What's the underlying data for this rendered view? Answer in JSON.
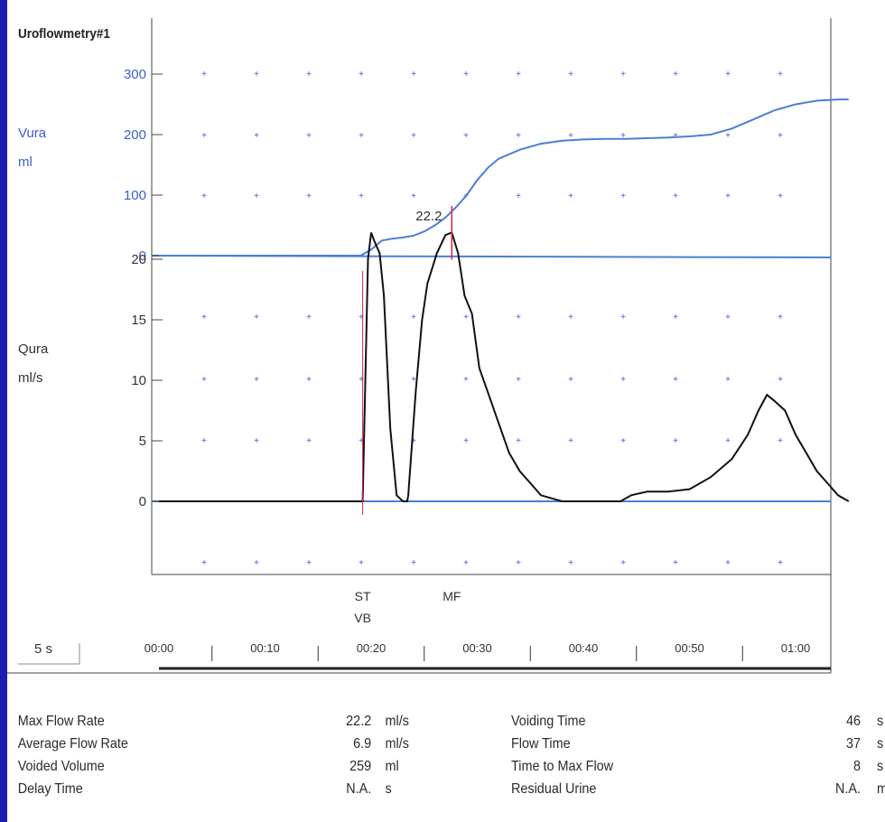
{
  "chart_data": {
    "title": "Uroflowmetry#1",
    "type": "line",
    "top_panel": {
      "ylabel_lines": [
        "Vura",
        "ml"
      ],
      "ylim": [
        0,
        300
      ],
      "yticks": [
        0,
        100,
        200,
        300
      ],
      "series": [
        {
          "name": "Vura",
          "x": [
            0,
            19,
            20,
            21,
            22,
            23,
            24,
            25,
            26,
            27,
            28,
            29,
            30,
            31,
            32,
            34,
            36,
            38,
            40,
            42,
            44,
            46,
            48,
            50,
            52,
            54,
            56,
            58,
            60,
            62,
            64,
            65
          ],
          "y": [
            0,
            0,
            10,
            25,
            28,
            30,
            33,
            40,
            50,
            63,
            80,
            100,
            125,
            145,
            160,
            175,
            185,
            190,
            192,
            193,
            193,
            194,
            195,
            197,
            200,
            210,
            225,
            240,
            250,
            256,
            258,
            258
          ]
        }
      ]
    },
    "bottom_panel": {
      "ylabel_lines": [
        "Qura",
        "ml/s"
      ],
      "ylim": [
        -5,
        20
      ],
      "yticks": [
        0,
        5,
        10,
        15,
        20
      ],
      "series": [
        {
          "name": "Qura",
          "x": [
            0,
            19.2,
            19.7,
            20.0,
            20.3,
            20.8,
            21.2,
            21.8,
            22.4,
            23.0,
            23.4,
            23.5,
            24.2,
            24.8,
            25.3,
            26.2,
            27.0,
            27.6,
            28.2,
            28.8,
            29.5,
            30.2,
            31.0,
            32.0,
            33.0,
            34.0,
            35.0,
            36.0,
            38.0,
            40.0,
            42.0,
            43.5,
            44.5,
            46.0,
            48.0,
            50.0,
            52.0,
            54.0,
            55.5,
            56.5,
            57.3,
            58.0,
            59.0,
            60.0,
            61.0,
            62.0,
            63.0,
            64.0,
            65.0
          ],
          "y": [
            0,
            0,
            20,
            22.2,
            21.5,
            20.5,
            17,
            6,
            0.5,
            0,
            0,
            0.5,
            9,
            15,
            18,
            20.5,
            22,
            22.2,
            20.5,
            17,
            15.5,
            11,
            9,
            6.5,
            4,
            2.5,
            1.5,
            0.5,
            0,
            0,
            0,
            0,
            0.5,
            0.8,
            0.8,
            1,
            2,
            3.5,
            5.5,
            7.5,
            8.8,
            8.3,
            7.5,
            5.5,
            4,
            2.5,
            1.5,
            0.5,
            0
          ]
        }
      ],
      "max_flow_label": "22.2"
    },
    "markers": [
      {
        "lines": [
          "ST",
          "VB"
        ],
        "x": 19.2
      },
      {
        "lines": [
          "MF"
        ],
        "x": 27.6
      }
    ],
    "time_axis": {
      "scale_label": "5 s",
      "xlim": [
        0,
        65
      ],
      "ticks": [
        "00:00",
        "00:10",
        "00:20",
        "00:30",
        "00:40",
        "00:50",
        "01:00"
      ]
    }
  },
  "results": {
    "left": [
      {
        "label": "Max Flow Rate",
        "value": "22.2",
        "unit": "ml/s"
      },
      {
        "label": "Average Flow Rate",
        "value": "6.9",
        "unit": "ml/s"
      },
      {
        "label": "Voided Volume",
        "value": "259",
        "unit": "ml"
      },
      {
        "label": "Delay Time",
        "value": "N.A.",
        "unit": "s"
      }
    ],
    "right": [
      {
        "label": "Voiding Time",
        "value": "46",
        "unit": "s"
      },
      {
        "label": "Flow Time",
        "value": "37",
        "unit": "s"
      },
      {
        "label": "Time to Max Flow",
        "value": "8",
        "unit": "s"
      },
      {
        "label": "Residual Urine",
        "value": "N.A.",
        "unit": "ml"
      }
    ]
  },
  "colors": {
    "frame": "#1b1fb0",
    "volume_curve": "#4a7fd4",
    "flow_curve": "#111111",
    "axis_label_blue": "#3a5fcf",
    "max_flow_marker": "#e0204a",
    "grid_dot": "#3c5ad0"
  }
}
